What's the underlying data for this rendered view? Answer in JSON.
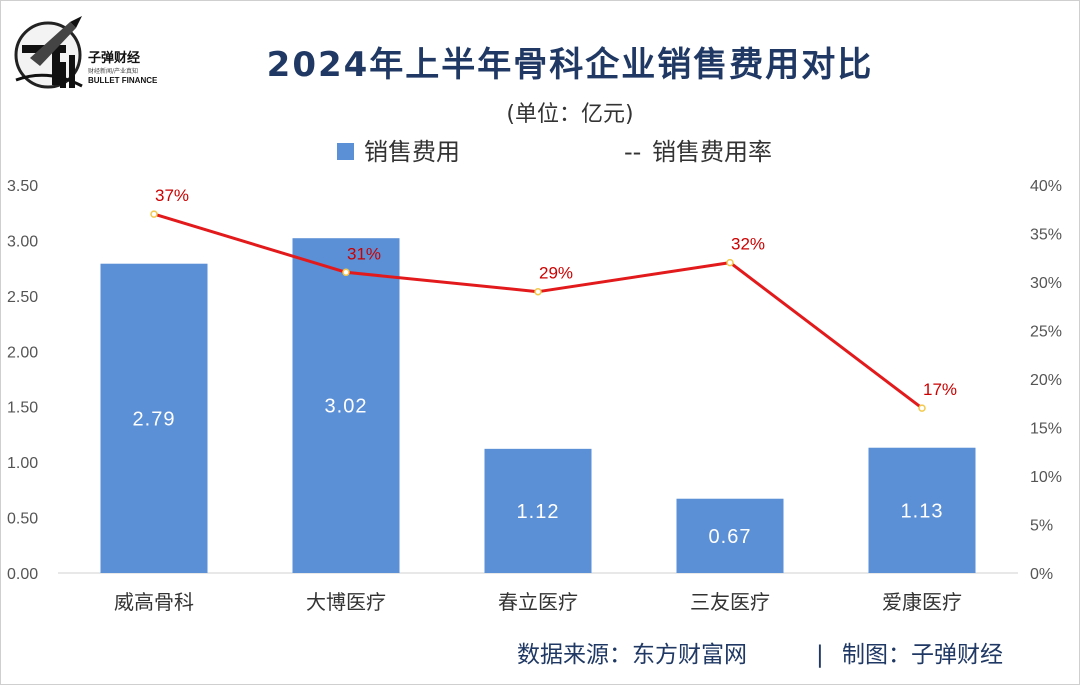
{
  "logo": {
    "name": "子弹财经",
    "tagline": "财经新闻/产业真知",
    "english": "BULLET FINANCE"
  },
  "footer": {
    "source": "数据来源：东方财富网",
    "separator": "|",
    "credit": "制图：子弹财经"
  },
  "colors": {
    "bar": "#5b8fd6",
    "line": "#e31a1c",
    "title": "#1f3864"
  },
  "chart_data": {
    "type": "bar",
    "title": "2024年上半年骨科企业销售费用对比",
    "subtitle": "(单位：亿元)",
    "categories": [
      "威高骨科",
      "大博医疗",
      "春立医疗",
      "三友医疗",
      "爱康医疗"
    ],
    "series": [
      {
        "name": "销售费用",
        "type": "bar",
        "axis": "left",
        "values": [
          2.79,
          3.02,
          1.12,
          0.67,
          1.13
        ],
        "labels": [
          "2.79",
          "3.02",
          "1.12",
          "0.67",
          "1.13"
        ]
      },
      {
        "name": "销售费用率",
        "type": "line",
        "axis": "right",
        "values": [
          37,
          31,
          29,
          32,
          17
        ],
        "labels": [
          "37%",
          "31%",
          "29%",
          "32%",
          "17%"
        ]
      }
    ],
    "left_axis": {
      "ylim": [
        0,
        3.5
      ],
      "ticks": [
        "0.00",
        "0.50",
        "1.00",
        "1.50",
        "2.00",
        "2.50",
        "3.00",
        "3.50"
      ]
    },
    "right_axis": {
      "ylim": [
        0,
        40
      ],
      "ticks": [
        "0%",
        "5%",
        "10%",
        "15%",
        "20%",
        "25%",
        "30%",
        "35%",
        "40%"
      ]
    },
    "legend": {
      "bar_label": "销售费用",
      "line_label": "销售费用率",
      "line_marker": "--",
      "position": "top-center"
    },
    "grid": false
  }
}
